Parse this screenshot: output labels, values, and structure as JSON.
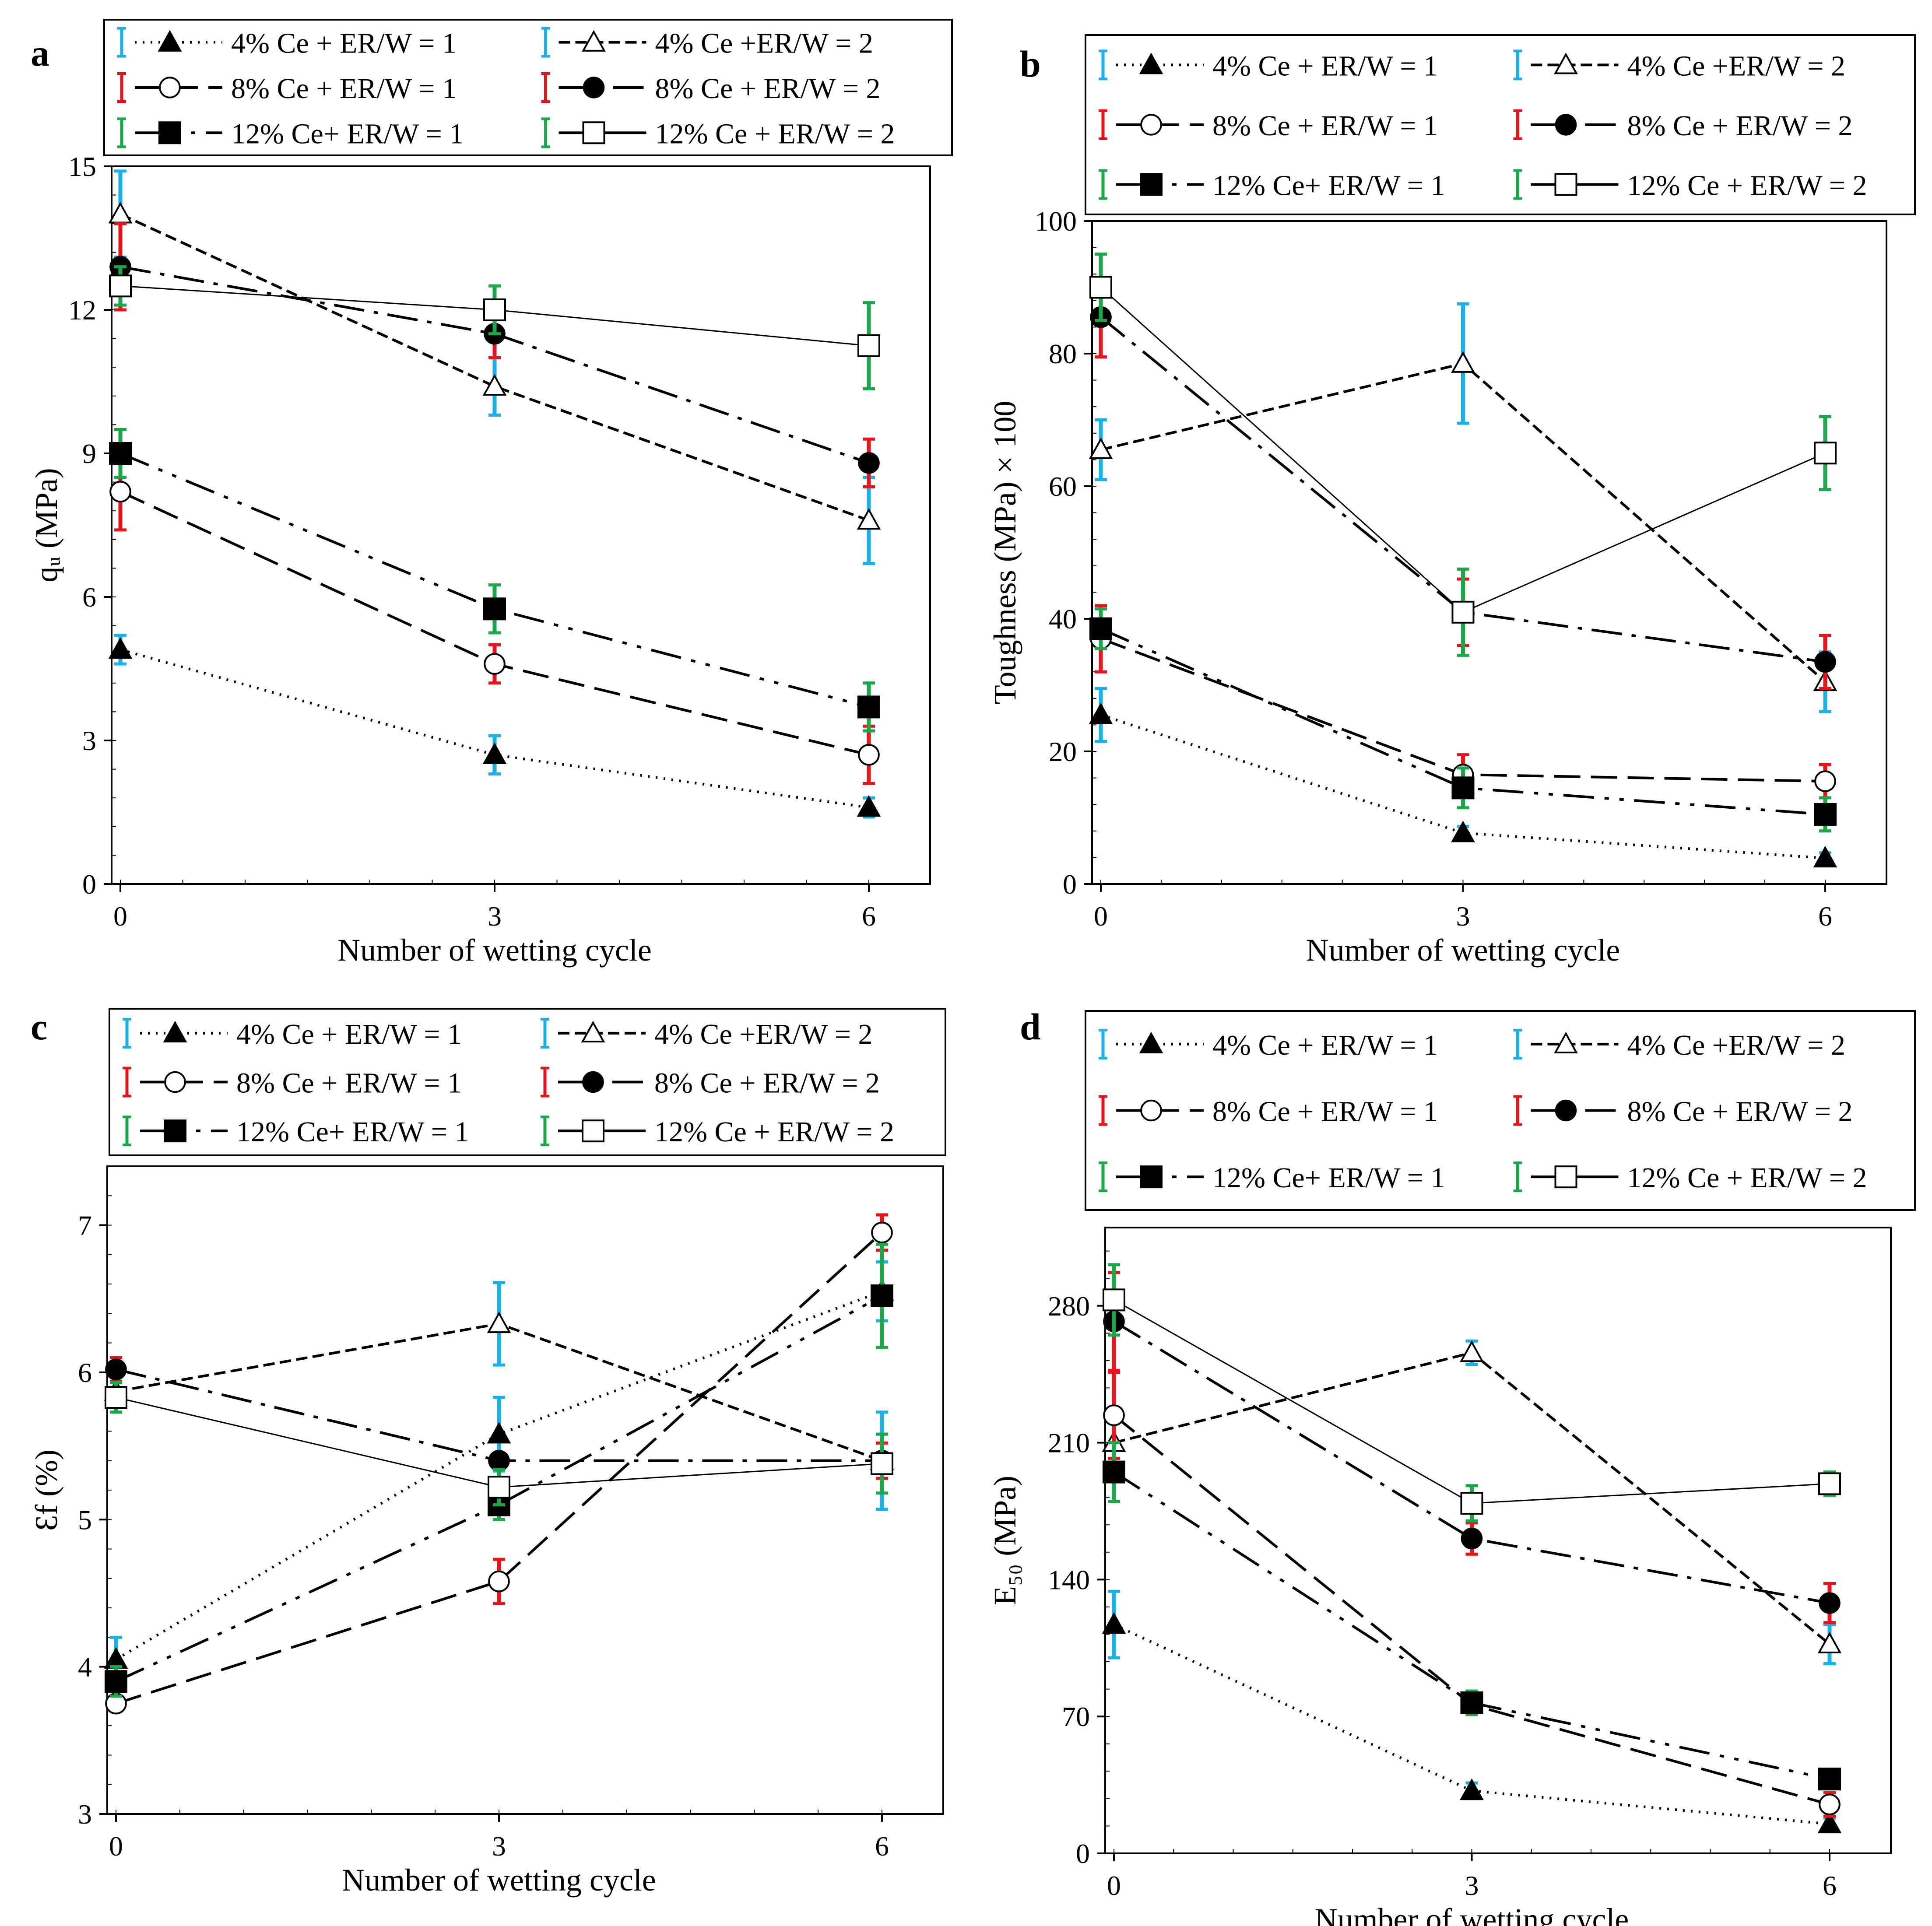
{
  "styles": {
    "4ce_er1": {
      "color": "#000000",
      "dash": "4,14",
      "marker": "triangle-filled",
      "err_color": "#1ab0e8"
    },
    "4ce_er2": {
      "color": "#000000",
      "dash": "26,12",
      "marker": "triangle-open",
      "err_color": "#1ab0e8"
    },
    "8ce_er1": {
      "color": "#000000",
      "dash": "60,24",
      "marker": "circle-open",
      "err_color": "#e8141c"
    },
    "8ce_er2": {
      "color": "#000000",
      "dash": "70,22,10,22",
      "marker": "circle-filled",
      "err_color": "#e8141c"
    },
    "12ce_er1": {
      "color": "#000000",
      "dash": "70,24,10,24,10,24",
      "marker": "square-filled",
      "err_color": "#1aa84a"
    },
    "12ce_er2": {
      "color": "#000000",
      "dash": "",
      "marker": "square-open",
      "err_color": "#1aa84a"
    }
  },
  "chart_data": [
    {
      "id": "a",
      "panel_label": "a",
      "type": "line",
      "xlabel": "Number of wetting cycle",
      "ylabel": "qᵤ (MPa)",
      "x": [
        0,
        3,
        6
      ],
      "x_ticks": [
        "0",
        "3",
        "6"
      ],
      "ylim": [
        0,
        15
      ],
      "y_ticks": [
        "0",
        "3",
        "6",
        "9",
        "12",
        "15"
      ],
      "legend": [
        {
          "key": "4ce_er1",
          "label": "4% Ce + ER/W = 1"
        },
        {
          "key": "4ce_er2",
          "label": "4% Ce +ER/W = 2"
        },
        {
          "key": "8ce_er1",
          "label": "8% Ce + ER/W = 1"
        },
        {
          "key": "8ce_er2",
          "label": "8% Ce + ER/W = 2"
        },
        {
          "key": "12ce_er1",
          "label": "12% Ce+ ER/W = 1"
        },
        {
          "key": "12ce_er2",
          "label": "12% Ce + ER/W = 2"
        }
      ],
      "series": [
        {
          "key": "4ce_er1",
          "values": [
            4.9,
            2.7,
            1.6
          ],
          "errors": [
            0.3,
            0.4,
            0.2
          ]
        },
        {
          "key": "4ce_er2",
          "values": [
            14.0,
            10.4,
            7.6
          ],
          "errors": [
            0.9,
            0.6,
            0.9
          ]
        },
        {
          "key": "8ce_er1",
          "values": [
            8.2,
            4.6,
            2.7
          ],
          "errors": [
            0.8,
            0.4,
            0.6
          ]
        },
        {
          "key": "8ce_er2",
          "values": [
            12.9,
            11.5,
            8.8
          ],
          "errors": [
            0.9,
            0.5,
            0.5
          ]
        },
        {
          "key": "12ce_er1",
          "values": [
            9.0,
            5.75,
            3.7
          ],
          "errors": [
            0.5,
            0.5,
            0.5
          ]
        },
        {
          "key": "12ce_er2",
          "values": [
            12.5,
            12.0,
            11.25
          ],
          "errors": [
            0.4,
            0.5,
            0.9
          ]
        }
      ]
    },
    {
      "id": "b",
      "panel_label": "b",
      "type": "line",
      "xlabel": "Number of wetting cycle",
      "ylabel": "Toughness (MPa) × 100",
      "x": [
        0,
        3,
        6
      ],
      "x_ticks": [
        "0",
        "3",
        "6"
      ],
      "ylim": [
        0,
        100
      ],
      "y_ticks": [
        "0",
        "20",
        "40",
        "60",
        "80",
        "100"
      ],
      "legend": [
        {
          "key": "4ce_er1",
          "label": "4% Ce + ER/W = 1"
        },
        {
          "key": "4ce_er2",
          "label": "4% Ce +ER/W = 2"
        },
        {
          "key": "8ce_er1",
          "label": "8% Ce + ER/W = 1"
        },
        {
          "key": "8ce_er2",
          "label": "8% Ce + ER/W = 2"
        },
        {
          "key": "12ce_er1",
          "label": "12% Ce+ ER/W = 1"
        },
        {
          "key": "12ce_er2",
          "label": "12% Ce + ER/W = 2"
        }
      ],
      "series": [
        {
          "key": "4ce_er1",
          "values": [
            25.5,
            7.7,
            3.9
          ],
          "errors": [
            4,
            1,
            0.8
          ]
        },
        {
          "key": "4ce_er2",
          "values": [
            65.5,
            78.5,
            30.5
          ],
          "errors": [
            4.5,
            9,
            4.5
          ]
        },
        {
          "key": "8ce_er1",
          "values": [
            37.0,
            16.5,
            15.5
          ],
          "errors": [
            5,
            3,
            2.5
          ]
        },
        {
          "key": "8ce_er2",
          "values": [
            85.5,
            41.0,
            33.5
          ],
          "errors": [
            6,
            5,
            4
          ]
        },
        {
          "key": "12ce_er1",
          "values": [
            38.5,
            14.5,
            10.5
          ],
          "errors": [
            3,
            3,
            2.5
          ]
        },
        {
          "key": "12ce_er2",
          "values": [
            90.0,
            41.0,
            65.0
          ],
          "errors": [
            5,
            6.5,
            5.5
          ]
        }
      ]
    },
    {
      "id": "c",
      "panel_label": "c",
      "type": "line",
      "xlabel": "Number of wetting cycle",
      "ylabel": "Ɛf (%)",
      "x": [
        0,
        3,
        6
      ],
      "x_ticks": [
        "0",
        "3",
        "6"
      ],
      "ylim": [
        3,
        7.4
      ],
      "y_ticks": [
        "3",
        "4",
        "5",
        "6",
        "7"
      ],
      "y_tick_values": [
        3,
        4,
        5,
        6,
        7
      ],
      "legend": [
        {
          "key": "4ce_er1",
          "label": "4% Ce + ER/W = 1"
        },
        {
          "key": "4ce_er2",
          "label": "4% Ce +ER/W = 2"
        },
        {
          "key": "8ce_er1",
          "label": "8% Ce + ER/W = 1"
        },
        {
          "key": "8ce_er2",
          "label": "8% Ce + ER/W = 2"
        },
        {
          "key": "12ce_er1",
          "label": "12% Ce+ ER/W = 1"
        },
        {
          "key": "12ce_er2",
          "label": "12% Ce + ER/W = 2"
        }
      ],
      "series": [
        {
          "key": "4ce_er1",
          "values": [
            4.05,
            5.58,
            6.55
          ],
          "errors": [
            0.15,
            0.25,
            0.2
          ]
        },
        {
          "key": "4ce_er2",
          "values": [
            5.87,
            6.33,
            5.4
          ],
          "errors": [
            0.1,
            0.28,
            0.33
          ]
        },
        {
          "key": "8ce_er1",
          "values": [
            3.75,
            4.58,
            6.95
          ],
          "errors": [
            0.05,
            0.15,
            0.12
          ]
        },
        {
          "key": "8ce_er2",
          "values": [
            6.02,
            5.4,
            5.4
          ],
          "errors": [
            0.08,
            0.05,
            0.12
          ]
        },
        {
          "key": "12ce_er1",
          "values": [
            3.9,
            5.1,
            6.52
          ],
          "errors": [
            0.1,
            0.1,
            0.35
          ]
        },
        {
          "key": "12ce_er2",
          "values": [
            5.83,
            5.22,
            5.38
          ],
          "errors": [
            0.1,
            0.12,
            0.2
          ]
        }
      ]
    },
    {
      "id": "d",
      "panel_label": "d",
      "type": "line",
      "xlabel": "Number of wetting cycle",
      "ylabel": "E₅₀ (MPa)",
      "x": [
        0,
        3,
        6
      ],
      "x_ticks": [
        "0",
        "3",
        "6"
      ],
      "ylim": [
        0,
        320
      ],
      "y_ticks": [
        "0",
        "70",
        "140",
        "210",
        "280"
      ],
      "y_tick_values": [
        0,
        70,
        140,
        210,
        280
      ],
      "legend": [
        {
          "key": "4ce_er1",
          "label": "4% Ce + ER/W = 1"
        },
        {
          "key": "4ce_er2",
          "label": "4% Ce +ER/W = 2"
        },
        {
          "key": "8ce_er1",
          "label": "8% Ce + ER/W = 1"
        },
        {
          "key": "8ce_er2",
          "label": "8% Ce + ER/W = 2"
        },
        {
          "key": "12ce_er1",
          "label": "12% Ce+ ER/W = 1"
        },
        {
          "key": "12ce_er2",
          "label": "12% Ce + ER/W = 2"
        }
      ],
      "series": [
        {
          "key": "4ce_er1",
          "values": [
            117,
            32,
            15
          ],
          "errors": [
            17,
            4,
            3
          ]
        },
        {
          "key": "4ce_er2",
          "values": [
            210,
            256,
            107
          ],
          "errors": [
            10,
            6,
            10
          ]
        },
        {
          "key": "8ce_er1",
          "values": [
            224,
            76,
            25
          ],
          "errors": [
            22,
            5,
            6
          ]
        },
        {
          "key": "8ce_er2",
          "values": [
            272,
            161,
            128
          ],
          "errors": [
            25,
            8,
            10
          ]
        },
        {
          "key": "12ce_er1",
          "values": [
            195,
            77,
            38
          ],
          "errors": [
            15,
            6,
            5
          ]
        },
        {
          "key": "12ce_er2",
          "values": [
            283,
            179,
            189
          ],
          "errors": [
            18,
            9,
            6
          ]
        }
      ]
    }
  ]
}
